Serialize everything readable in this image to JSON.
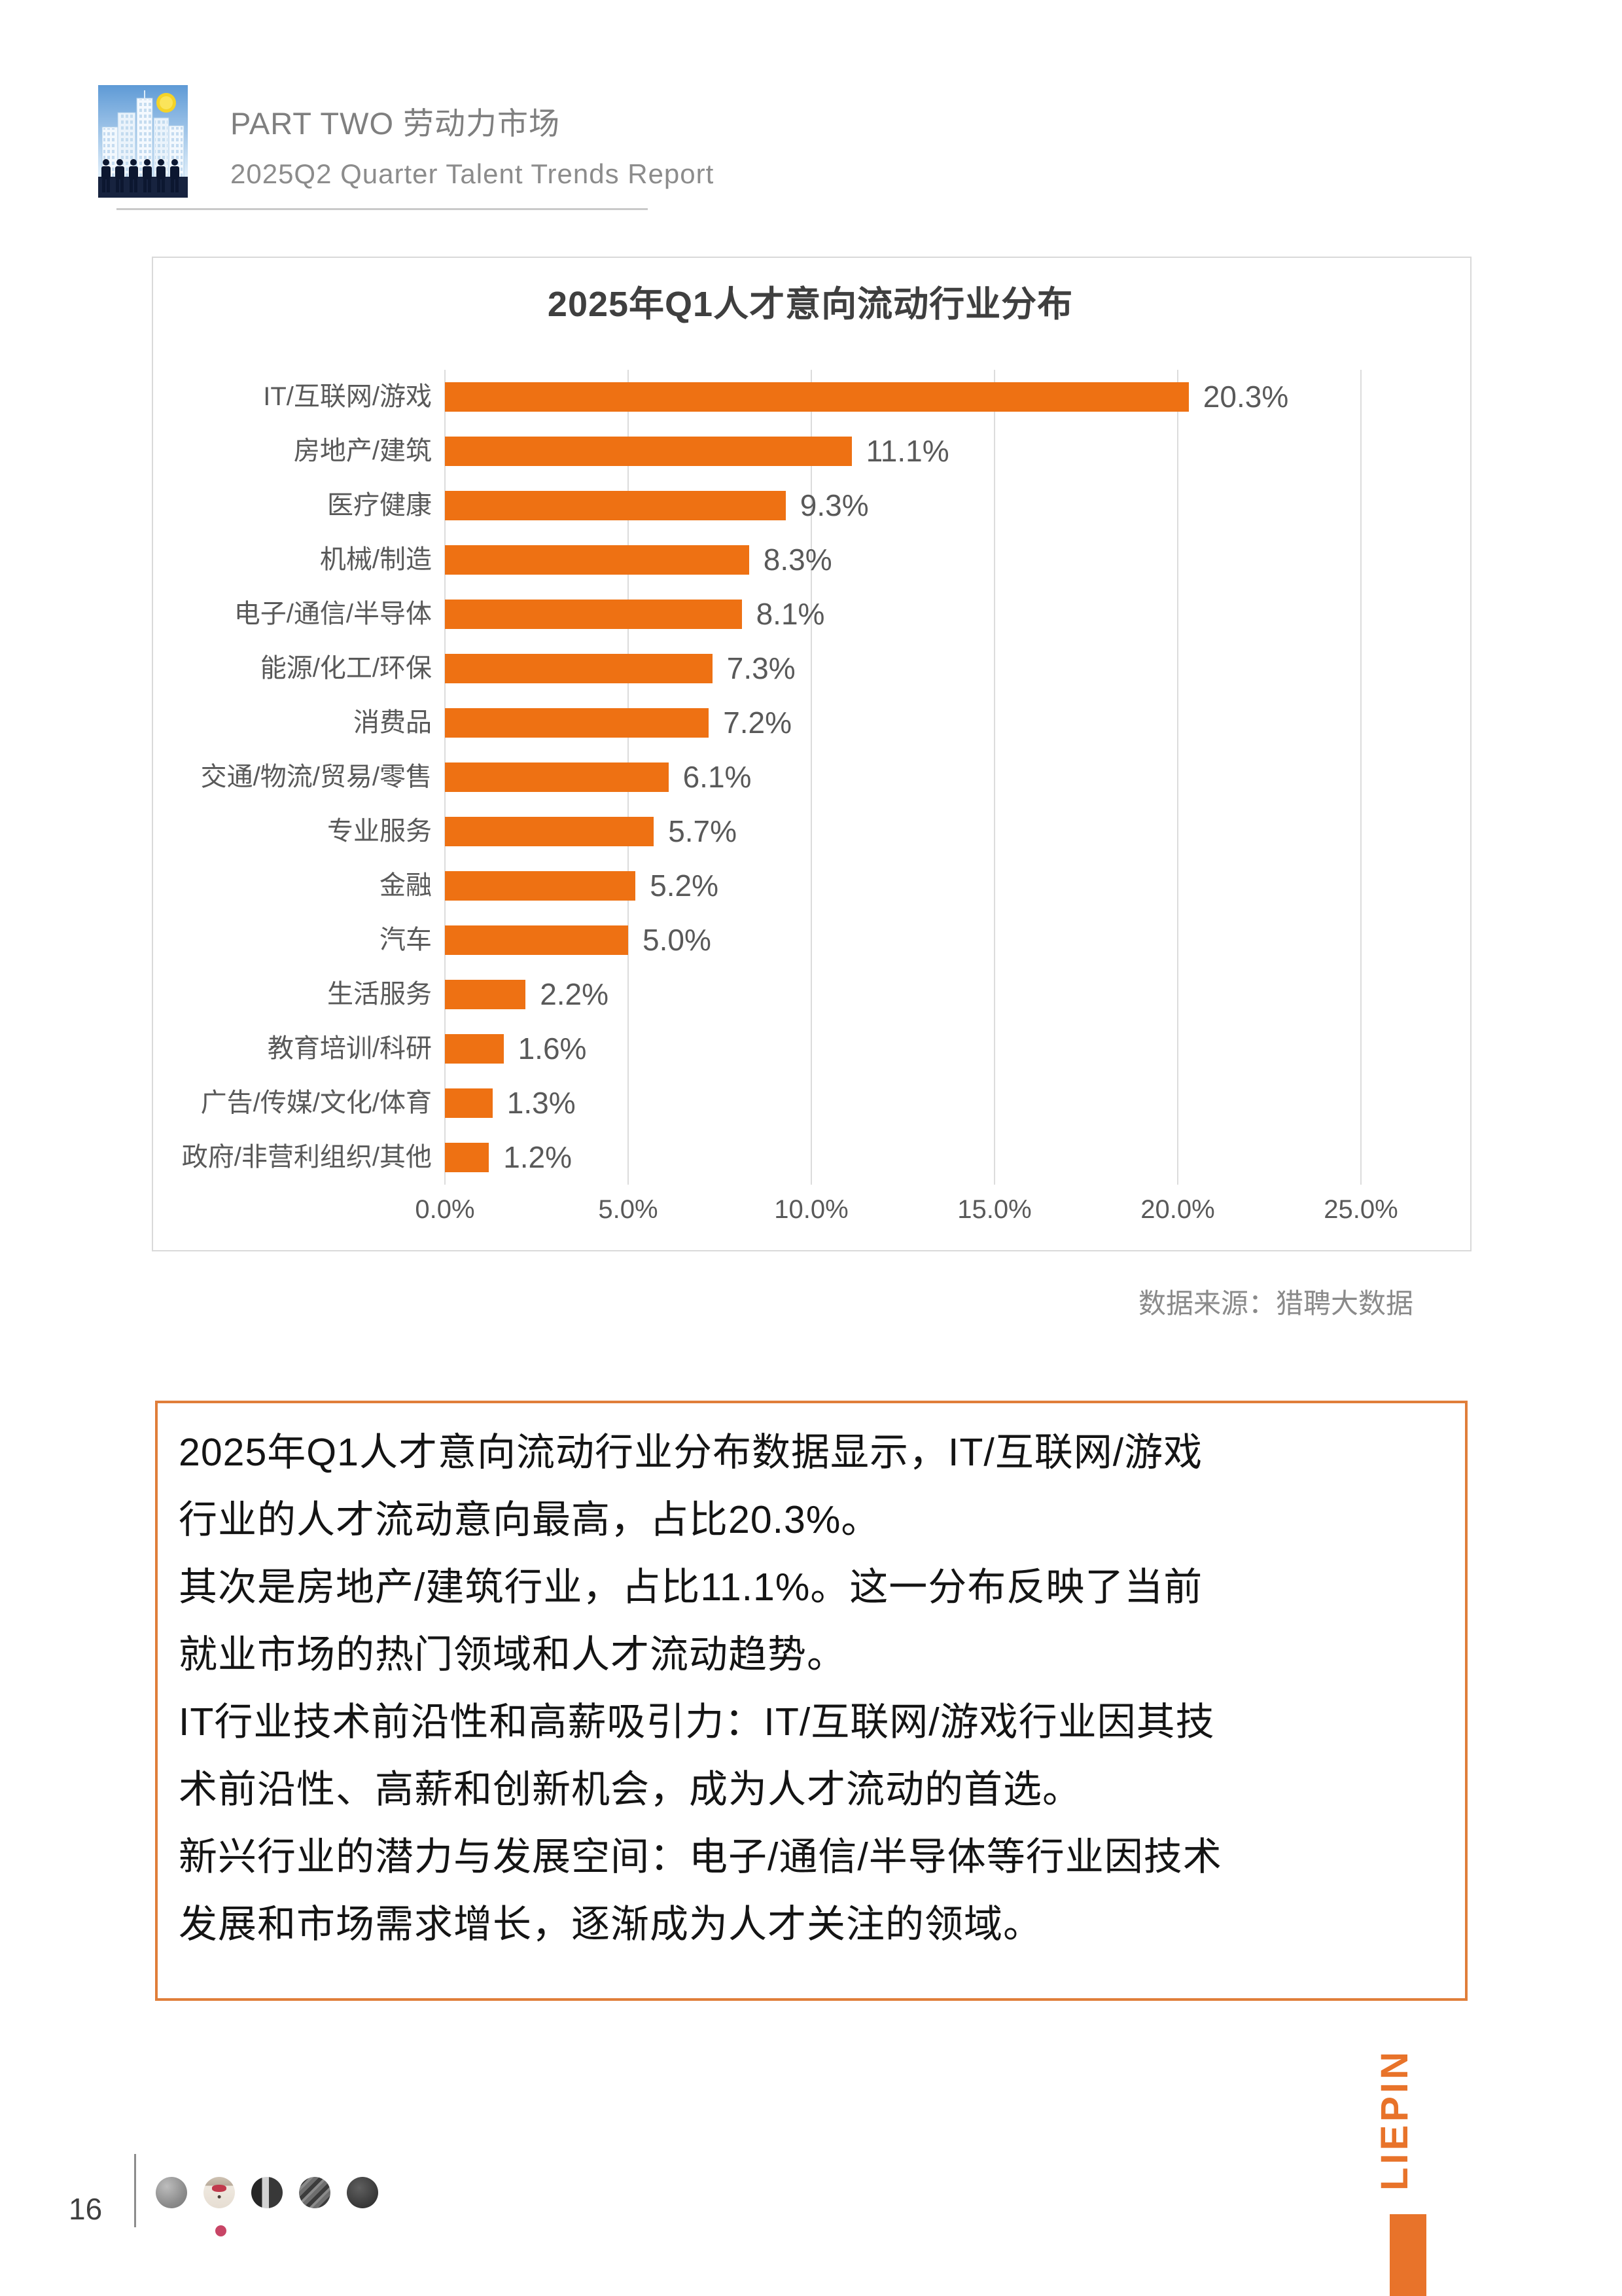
{
  "header": {
    "part_label": "PART TWO 劳动力市场",
    "report_title": "2025Q2 Quarter Talent Trends Report",
    "logo": "city-skyline-sun-and-people"
  },
  "chart_data": {
    "type": "bar",
    "orientation": "horizontal",
    "title": "2025年Q1人才意向流动行业分布",
    "categories": [
      "IT/互联网/游戏",
      "房地产/建筑",
      "医疗健康",
      "机械/制造",
      "电子/通信/半导体",
      "能源/化工/环保",
      "消费品",
      "交通/物流/贸易/零售",
      "专业服务",
      "金融",
      "汽车",
      "生活服务",
      "教育培训/科研",
      "广告/传媒/文化/体育",
      "政府/非营利组织/其他"
    ],
    "values": [
      20.3,
      11.1,
      9.3,
      8.3,
      8.1,
      7.3,
      7.2,
      6.1,
      5.7,
      5.2,
      5.0,
      2.2,
      1.6,
      1.3,
      1.2
    ],
    "value_labels": [
      "20.3%",
      "11.1%",
      "9.3%",
      "8.3%",
      "8.1%",
      "7.3%",
      "7.2%",
      "6.1%",
      "5.7%",
      "5.2%",
      "5.0%",
      "2.2%",
      "1.6%",
      "1.3%",
      "1.2%"
    ],
    "xlabel": "",
    "ylabel": "",
    "xlim": [
      0,
      25
    ],
    "x_tick_labels": [
      "0.0%",
      "5.0%",
      "10.0%",
      "15.0%",
      "20.0%",
      "25.0%"
    ],
    "grid": "vertical",
    "legend": "none",
    "bar_color": "#ee7113",
    "source_note": "数据来源：猎聘大数据"
  },
  "summary": {
    "lines": [
      "2025年Q1人才意向流动行业分布数据显示，IT/互联网/游戏",
      "行业的人才流动意向最高，占比20.3%。",
      "其次是房地产/建筑行业，占比11.1%。这一分布反映了当前",
      "就业市场的热门领域和人才流动趋势。",
      "IT行业技术前沿性和高薪吸引力：IT/互联网/游戏行业因其技",
      "术前沿性、高薪和创新机会，成为人才流动的首选。",
      "新兴行业的潜力与发展空间：电子/通信/半导体等行业因技术",
      "发展和市场需求增长，逐渐成为人才关注的领域。"
    ]
  },
  "footer": {
    "page_number": "16",
    "brand_vertical": "LIEPIN",
    "avatars": [
      {
        "name": "avatar-flowers-grayscale"
      },
      {
        "name": "avatar-person-red-bowtie",
        "active_dot": true
      },
      {
        "name": "avatar-building-grayscale"
      },
      {
        "name": "avatar-street-grayscale"
      },
      {
        "name": "avatar-dark-texture"
      }
    ]
  },
  "colors": {
    "bar_orange": "#ee7113",
    "summary_border_orange": "#e07e3a",
    "brand_orange": "#e8732a",
    "card_border_gray": "#d9d9d9",
    "axis_text_gray": "#595959",
    "header_text_gray": "#7f7f7f"
  }
}
